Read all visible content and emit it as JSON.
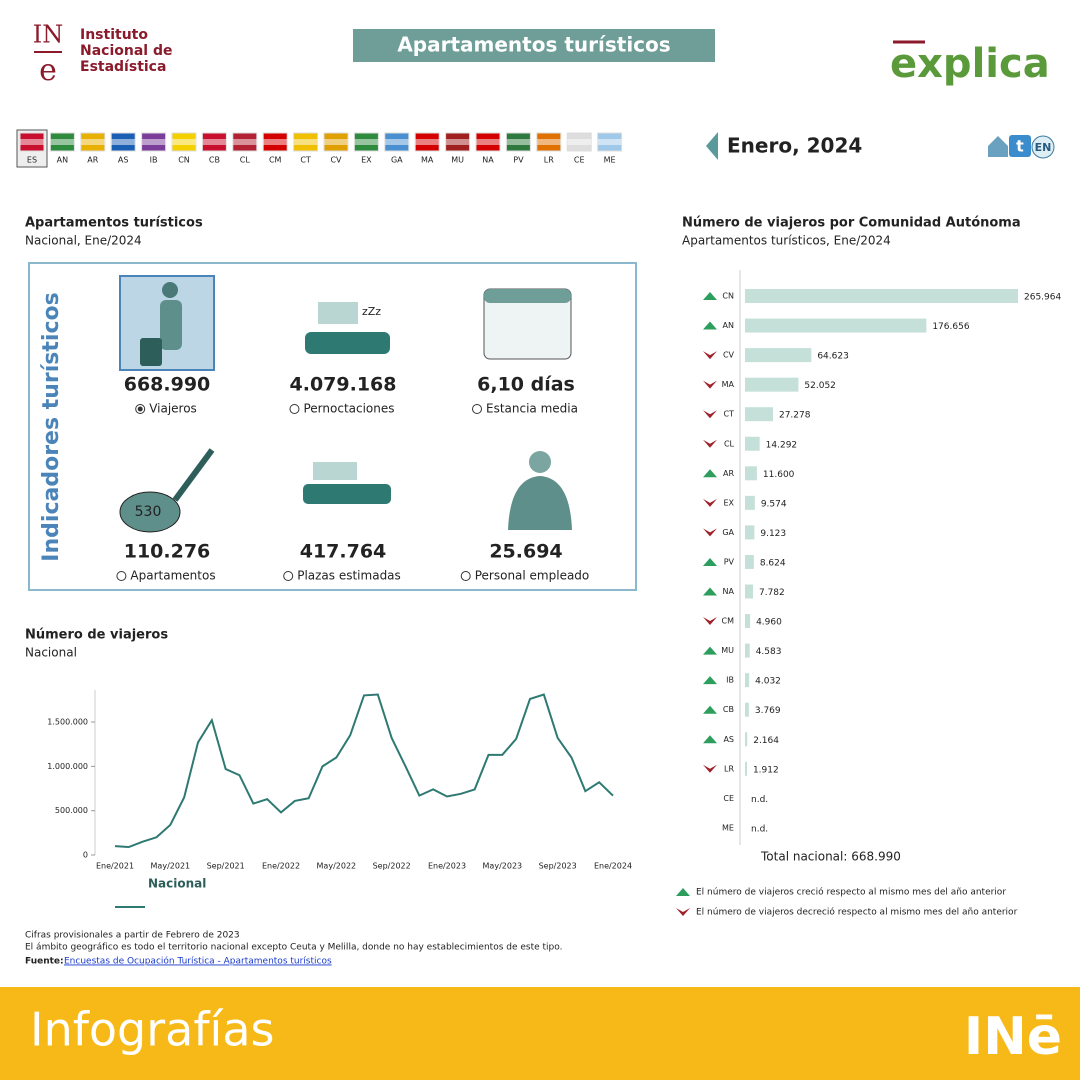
{
  "header": {
    "institute": [
      "Instituto",
      "Nacional de",
      "Estadística"
    ],
    "logo_left": [
      "IN",
      "e"
    ],
    "title": "Apartamentos turísticos",
    "logo_right": "explica",
    "regions": [
      "ES",
      "AN",
      "AR",
      "AS",
      "IB",
      "CN",
      "CB",
      "CL",
      "CM",
      "CT",
      "CV",
      "EX",
      "GA",
      "MA",
      "MU",
      "NA",
      "PV",
      "LR",
      "CE",
      "ME"
    ],
    "period": "Enero, 2024",
    "lang": "EN"
  },
  "indicators": {
    "title": "Apartamentos turísticos",
    "subtitle": "Nacional, Ene/2024",
    "side_label": "Indicadores turísticos",
    "items": [
      {
        "value": "668.990",
        "label": "Viajeros",
        "selected": true
      },
      {
        "value": "4.079.168",
        "label": "Pernoctaciones",
        "selected": false
      },
      {
        "value": "6,10 días",
        "label": "Estancia media",
        "selected": false
      },
      {
        "value": "110.276",
        "label": "Apartamentos",
        "selected": false
      },
      {
        "value": "417.764",
        "label": "Plazas estimadas",
        "selected": false
      },
      {
        "value": "25.694",
        "label": "Personal empleado",
        "selected": false
      }
    ]
  },
  "chart_data": [
    {
      "type": "line",
      "title": "Número de viajeros",
      "subtitle": "Nacional",
      "categories": [
        "Ene/2021",
        null,
        null,
        null,
        "May/2021",
        null,
        null,
        null,
        "Sep/2021",
        null,
        null,
        null,
        "Ene/2022",
        null,
        null,
        null,
        "May/2022",
        null,
        null,
        null,
        "Sep/2022",
        null,
        null,
        null,
        "Ene/2023",
        null,
        null,
        null,
        "May/2023",
        null,
        null,
        null,
        "Sep/2023",
        null,
        null,
        null,
        "Ene/2024"
      ],
      "series": [
        {
          "name": "Nacional",
          "color": "#2e7a72",
          "values": [
            100000,
            90000,
            150000,
            200000,
            340000,
            650000,
            1270000,
            1520000,
            970000,
            900000,
            580000,
            630000,
            480000,
            610000,
            640000,
            1000000,
            1100000,
            1350000,
            1800000,
            1810000,
            1320000,
            1000000,
            670000,
            740000,
            660000,
            690000,
            740000,
            1130000,
            1130000,
            1310000,
            1760000,
            1810000,
            1320000,
            1100000,
            720000,
            820000,
            668990
          ]
        }
      ],
      "ylim": [
        0,
        1850000
      ],
      "yticks": [
        0,
        {
          "value": 500000,
          "label": "500.000"
        },
        {
          "value": 1000000,
          "label": "1.000.000"
        },
        {
          "value": 1500000,
          "label": "1.500.000"
        }
      ]
    },
    {
      "type": "hbar",
      "title": "Número de viajeros por Comunidad Autónoma",
      "subtitle": "Apartamentos turísticos, Ene/2024",
      "categories": [
        "CN",
        "AN",
        "CV",
        "MA",
        "CT",
        "CL",
        "AR",
        "EX",
        "GA",
        "PV",
        "NA",
        "CM",
        "MU",
        "IB",
        "CB",
        "AS",
        "LR",
        "CE",
        "ME"
      ],
      "values": [
        265964,
        176656,
        64623,
        52052,
        27278,
        14292,
        11600,
        9574,
        9123,
        8624,
        7782,
        4960,
        4583,
        4032,
        3769,
        2164,
        1912,
        null,
        null
      ],
      "value_labels": [
        "265.964",
        "176.656",
        "64.623",
        "52.052",
        "27.278",
        "14.292",
        "11.600",
        "9.574",
        "9.123",
        "8.624",
        "7.782",
        "4.960",
        "4.583",
        "4.032",
        "3.769",
        "2.164",
        "1.912",
        "n.d.",
        "n.d."
      ],
      "trend": [
        "up",
        "up",
        "down",
        "down",
        "down",
        "down",
        "up",
        "down",
        "down",
        "up",
        "up",
        "down",
        "up",
        "up",
        "up",
        "up",
        "down",
        null,
        null
      ],
      "color": "#c5e0d8",
      "total_label": "Total nacional: 668.990",
      "trend_legend": {
        "up": "El número de viajeros creció respecto al mismo mes del año anterior",
        "down": "El número de viajeros decreció respecto al mismo mes del año anterior"
      }
    }
  ],
  "notes": {
    "lines": [
      "Cifras provisionales a partir de Febrero de 2023",
      "El ámbito geográfico es todo el territorio nacional excepto Ceuta y Melilla, donde no hay establecimientos de este tipo."
    ],
    "source_label": "Fuente:",
    "source_link": "Encuestas de Ocupación Turística - Apartamentos turísticos"
  },
  "footer": {
    "left": "Infografías",
    "right": "INē"
  }
}
